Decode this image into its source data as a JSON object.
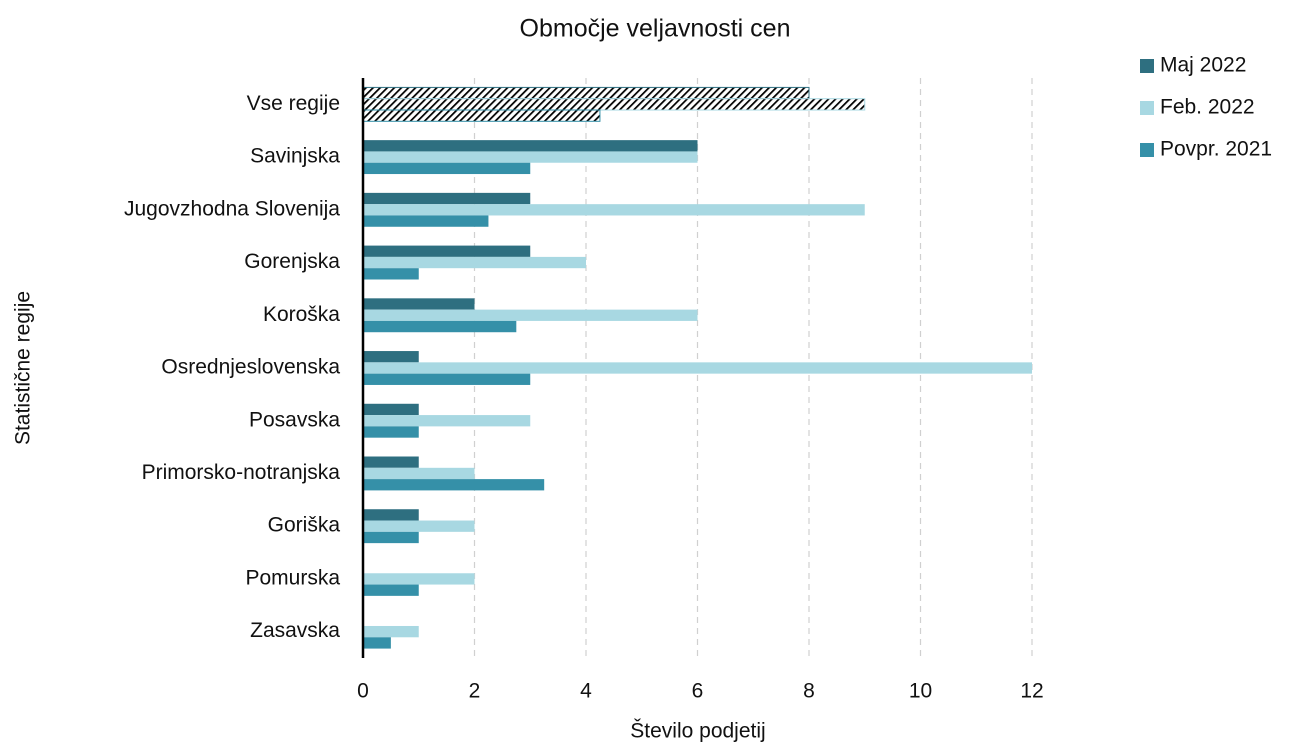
{
  "chart_data": {
    "type": "barh",
    "title": "Območje veljavnosti cen",
    "x_label": "Število podjetij",
    "y_label": "Statistične regije",
    "categories": [
      "Vse regije",
      "Savinjska",
      "Jugovzhodna Slovenija",
      "Gorenjska",
      "Koroška",
      "Osrednjeslovenska",
      "Posavska",
      "Primorsko-notranjska",
      "Goriška",
      "Pomurska",
      "Zasavska"
    ],
    "series": [
      {
        "name": "Maj 2022",
        "color": "#2e6f80",
        "values": [
          8,
          6,
          3,
          3,
          2,
          1,
          1,
          1,
          1,
          0,
          0
        ]
      },
      {
        "name": "Feb. 2022",
        "color": "#a8d8e2",
        "values": [
          9,
          6,
          9,
          4,
          6,
          12,
          3,
          2,
          2,
          2,
          1
        ]
      },
      {
        "name": "Povpr. 2021",
        "color": "#3590a8",
        "values": [
          4.25,
          3,
          2.25,
          1,
          2.75,
          3,
          1,
          3.25,
          1,
          1,
          0.5
        ]
      }
    ],
    "xlim": [
      0,
      12
    ],
    "xticks": [
      0,
      2,
      4,
      6,
      8,
      10,
      12
    ],
    "grid": true,
    "legend": "top-right"
  }
}
